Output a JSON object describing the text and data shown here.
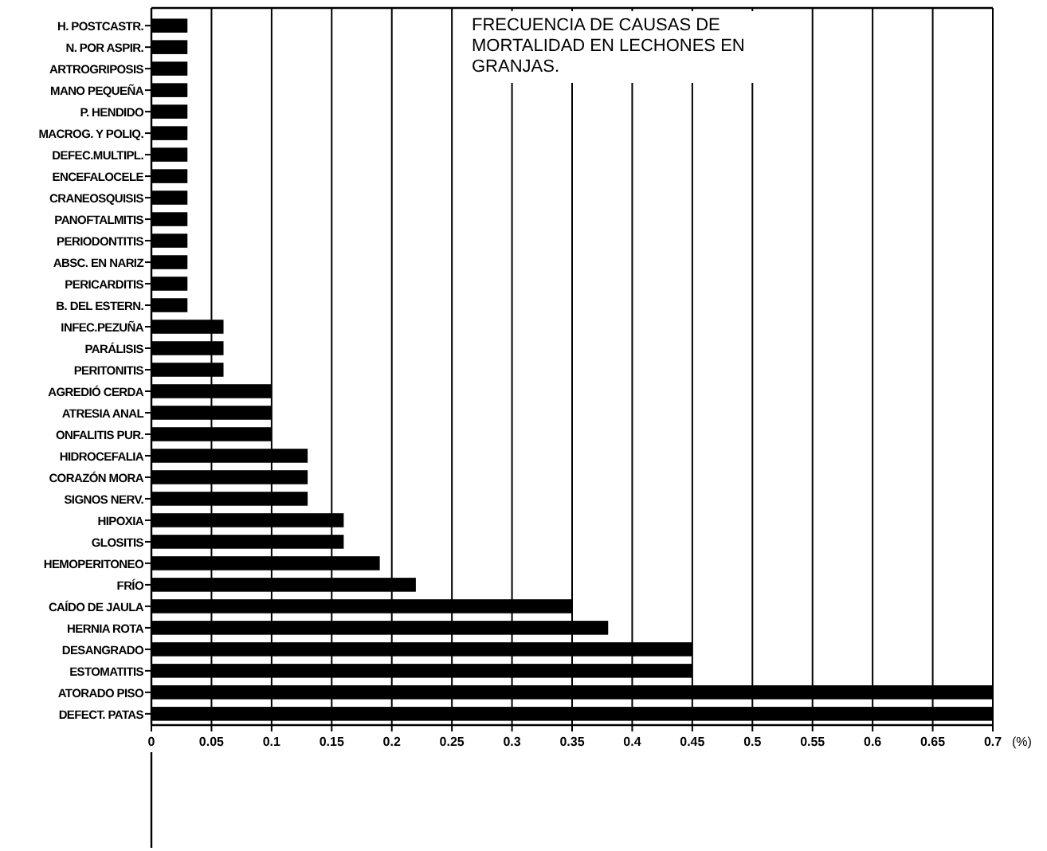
{
  "chart_data": {
    "type": "bar",
    "orientation": "horizontal",
    "title": "FRECUENCIA DE CAUSAS DE MORTALIDAD EN LECHONES EN GRANJAS.",
    "xlabel": "(%)",
    "categories": [
      "H. POSTCASTR.",
      "N. POR ASPIR.",
      "ARTROGRIPOSIS",
      "MANO PEQUEÑA",
      "P. HENDIDO",
      "MACROG. Y POLIQ.",
      "DEFEC.MULTIPL.",
      "ENCEFALOCELE",
      "CRANEOSQUISIS",
      "PANOFTALMITIS",
      "PERIODONTITIS",
      "ABSC. EN NARIZ",
      "PERICARDITIS",
      "B. DEL ESTERN.",
      "INFEC.PEZUÑA",
      "PARÁLISIS",
      "PERITONITIS",
      "AGREDIÓ CERDA",
      "ATRESIA ANAL",
      "ONFALITIS PUR.",
      "HIDROCEFALIA",
      "CORAZÓN MORA",
      "SIGNOS NERV.",
      "HIPOXIA",
      "GLOSITIS",
      "HEMOPERITONEO",
      "FRÍO",
      "CAÍDO DE JAULA",
      "HERNIA ROTA",
      "DESANGRADO",
      "ESTOMATITIS",
      "ATORADO PISO",
      "DEFECT. PATAS"
    ],
    "values": [
      0.03,
      0.03,
      0.03,
      0.03,
      0.03,
      0.03,
      0.03,
      0.03,
      0.03,
      0.03,
      0.03,
      0.03,
      0.03,
      0.03,
      0.06,
      0.06,
      0.06,
      0.1,
      0.1,
      0.1,
      0.13,
      0.13,
      0.13,
      0.16,
      0.16,
      0.19,
      0.22,
      0.35,
      0.38,
      0.45,
      0.45,
      0.7,
      0.7
    ],
    "color": "#000000",
    "xlim": [
      0,
      0.7
    ],
    "xticks": [
      0,
      0.05,
      0.1,
      0.15,
      0.2,
      0.25,
      0.3,
      0.35,
      0.4,
      0.45,
      0.5,
      0.55,
      0.6,
      0.65,
      0.7
    ],
    "grid": "x"
  }
}
